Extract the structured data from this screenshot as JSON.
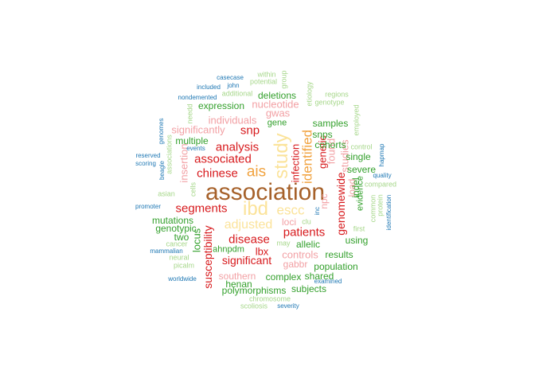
{
  "palette": {
    "dark_brown": "#a6612a",
    "cream": "#fbe39a",
    "orange": "#f1a340",
    "red": "#d7191c",
    "pink": "#f2a0a4",
    "dark_green": "#33a02c",
    "light_green": "#a6d78a",
    "blue": "#1f78b4"
  },
  "words": [
    {
      "text": "association",
      "size": 30,
      "color": "dark_brown"
    },
    {
      "text": "ibd",
      "size": 24,
      "color": "cream"
    },
    {
      "text": "study",
      "size": 24,
      "color": "cream",
      "vertical": true
    },
    {
      "text": "ais",
      "size": 19,
      "color": "orange"
    },
    {
      "text": "identified",
      "size": 17,
      "color": "orange",
      "vertical": true
    },
    {
      "text": "escc",
      "size": 17,
      "color": "cream"
    },
    {
      "text": "adjusted",
      "size": 16,
      "color": "cream"
    },
    {
      "text": "analysis",
      "size": 15,
      "color": "red"
    },
    {
      "text": "snp",
      "size": 15,
      "color": "red"
    },
    {
      "text": "associated",
      "size": 15,
      "color": "red"
    },
    {
      "text": "chinese",
      "size": 15,
      "color": "red"
    },
    {
      "text": "segments",
      "size": 15,
      "color": "red"
    },
    {
      "text": "disease",
      "size": 15,
      "color": "red"
    },
    {
      "text": "patients",
      "size": 15,
      "color": "red"
    },
    {
      "text": "significant",
      "size": 14,
      "color": "red"
    },
    {
      "text": "susceptibility",
      "size": 14,
      "color": "red",
      "vertical": true
    },
    {
      "text": "genomewide",
      "size": 14,
      "color": "red",
      "vertical": true
    },
    {
      "text": "genetic",
      "size": 13,
      "color": "red",
      "vertical": true
    },
    {
      "text": "infection",
      "size": 13,
      "color": "red",
      "vertical": true
    },
    {
      "text": "lbx",
      "size": 13,
      "color": "red"
    },
    {
      "text": "nucleotide",
      "size": 13,
      "color": "pink"
    },
    {
      "text": "gwas",
      "size": 13,
      "color": "pink"
    },
    {
      "text": "individuals",
      "size": 13,
      "color": "pink"
    },
    {
      "text": "significantly",
      "size": 13,
      "color": "pink"
    },
    {
      "text": "insertion",
      "size": 13,
      "color": "pink",
      "vertical": true
    },
    {
      "text": "found",
      "size": 13,
      "color": "pink",
      "vertical": true
    },
    {
      "text": "studies",
      "size": 13,
      "color": "pink",
      "vertical": true
    },
    {
      "text": "npc",
      "size": 12,
      "color": "pink",
      "vertical": true
    },
    {
      "text": "load",
      "size": 12,
      "color": "pink",
      "vertical": true
    },
    {
      "text": "loci",
      "size": 12,
      "color": "pink"
    },
    {
      "text": "controls",
      "size": 13,
      "color": "pink"
    },
    {
      "text": "gabbr",
      "size": 12,
      "color": "pink"
    },
    {
      "text": "southern",
      "size": 12,
      "color": "pink"
    },
    {
      "text": "locus",
      "size": 13,
      "color": "dark_green",
      "vertical": true
    },
    {
      "text": "indel",
      "size": 12,
      "color": "dark_green",
      "vertical": true
    },
    {
      "text": "evidence",
      "size": 11,
      "color": "dark_green",
      "vertical": true
    },
    {
      "text": "expression",
      "size": 12,
      "color": "dark_green"
    },
    {
      "text": "deletions",
      "size": 12,
      "color": "dark_green"
    },
    {
      "text": "gene",
      "size": 11,
      "color": "dark_green"
    },
    {
      "text": "samples",
      "size": 12,
      "color": "dark_green"
    },
    {
      "text": "snps",
      "size": 12,
      "color": "dark_green"
    },
    {
      "text": "cohorts",
      "size": 12,
      "color": "dark_green"
    },
    {
      "text": "single",
      "size": 12,
      "color": "dark_green"
    },
    {
      "text": "severe",
      "size": 12,
      "color": "dark_green"
    },
    {
      "text": "multiple",
      "size": 12,
      "color": "dark_green"
    },
    {
      "text": "mutations",
      "size": 12,
      "color": "dark_green"
    },
    {
      "text": "genotypic",
      "size": 12,
      "color": "dark_green"
    },
    {
      "text": "two",
      "size": 12,
      "color": "dark_green"
    },
    {
      "text": "allelic",
      "size": 12,
      "color": "dark_green"
    },
    {
      "text": "using",
      "size": 12,
      "color": "dark_green"
    },
    {
      "text": "results",
      "size": 12,
      "color": "dark_green"
    },
    {
      "text": "population",
      "size": 12,
      "color": "dark_green"
    },
    {
      "text": "complex",
      "size": 12,
      "color": "dark_green"
    },
    {
      "text": "shared",
      "size": 12,
      "color": "dark_green"
    },
    {
      "text": "subjects",
      "size": 12,
      "color": "dark_green"
    },
    {
      "text": "ahnpdm",
      "size": 11,
      "color": "dark_green"
    },
    {
      "text": "henan",
      "size": 12,
      "color": "dark_green"
    },
    {
      "text": "polymorphisms",
      "size": 12,
      "color": "dark_green"
    },
    {
      "text": "within",
      "size": 9,
      "color": "light_green"
    },
    {
      "text": "group",
      "size": 9,
      "color": "light_green",
      "vertical": true
    },
    {
      "text": "potential",
      "size": 9,
      "color": "light_green"
    },
    {
      "text": "additional",
      "size": 9,
      "color": "light_green"
    },
    {
      "text": "etiology",
      "size": 9,
      "color": "light_green",
      "vertical": true
    },
    {
      "text": "regions",
      "size": 9,
      "color": "light_green"
    },
    {
      "text": "genotype",
      "size": 9,
      "color": "light_green"
    },
    {
      "text": "employed",
      "size": 9,
      "color": "light_green",
      "vertical": true
    },
    {
      "text": "control",
      "size": 9,
      "color": "light_green"
    },
    {
      "text": "compared",
      "size": 9,
      "color": "light_green"
    },
    {
      "text": "common",
      "size": 9,
      "color": "light_green",
      "vertical": true
    },
    {
      "text": "protein",
      "size": 9,
      "color": "light_green",
      "vertical": true
    },
    {
      "text": "first",
      "size": 9,
      "color": "light_green"
    },
    {
      "text": "needd",
      "size": 9,
      "color": "light_green",
      "vertical": true
    },
    {
      "text": "associations",
      "size": 9,
      "color": "light_green",
      "vertical": true
    },
    {
      "text": "cells",
      "size": 9,
      "color": "light_green",
      "vertical": true
    },
    {
      "text": "asian",
      "size": 9,
      "color": "light_green"
    },
    {
      "text": "cancer",
      "size": 9,
      "color": "light_green"
    },
    {
      "text": "neural",
      "size": 9,
      "color": "light_green"
    },
    {
      "text": "picalm",
      "size": 9,
      "color": "light_green"
    },
    {
      "text": "may",
      "size": 9,
      "color": "light_green"
    },
    {
      "text": "clu",
      "size": 9,
      "color": "light_green"
    },
    {
      "text": "chromosome",
      "size": 9,
      "color": "light_green"
    },
    {
      "text": "scoliosis",
      "size": 9,
      "color": "light_green"
    },
    {
      "text": "casecase",
      "size": 8,
      "color": "blue"
    },
    {
      "text": "john",
      "size": 8,
      "color": "blue"
    },
    {
      "text": "included",
      "size": 8,
      "color": "blue"
    },
    {
      "text": "nondemented",
      "size": 8,
      "color": "blue"
    },
    {
      "text": "genomes",
      "size": 8,
      "color": "blue",
      "vertical": true
    },
    {
      "text": "events",
      "size": 8,
      "color": "blue"
    },
    {
      "text": "reserved",
      "size": 8,
      "color": "blue"
    },
    {
      "text": "scoring",
      "size": 8,
      "color": "blue"
    },
    {
      "text": "beagle",
      "size": 8,
      "color": "blue",
      "vertical": true
    },
    {
      "text": "promoter",
      "size": 8,
      "color": "blue"
    },
    {
      "text": "mammalian",
      "size": 8,
      "color": "blue"
    },
    {
      "text": "worldwide",
      "size": 8,
      "color": "blue"
    },
    {
      "text": "hapmap",
      "size": 8,
      "color": "blue",
      "vertical": true
    },
    {
      "text": "quality",
      "size": 8,
      "color": "blue"
    },
    {
      "text": "identification",
      "size": 8,
      "color": "blue",
      "vertical": true
    },
    {
      "text": "inc",
      "size": 8,
      "color": "blue",
      "vertical": true
    },
    {
      "text": "examined",
      "size": 8,
      "color": "blue"
    },
    {
      "text": "severity",
      "size": 8,
      "color": "blue"
    }
  ]
}
